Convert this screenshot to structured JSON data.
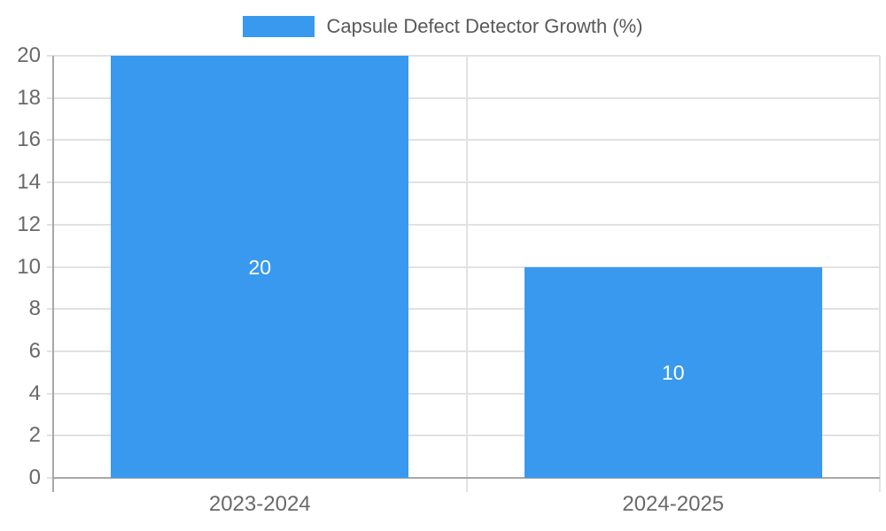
{
  "chart_data": {
    "type": "bar",
    "title": "Capsule Defect Detector Growth (%)",
    "categories": [
      "2023-2024",
      "2024-2025"
    ],
    "series": [
      {
        "name": "Capsule Defect Detector Growth (%)",
        "values": [
          20,
          10
        ],
        "color": "#3999ee"
      }
    ],
    "data_labels": [
      "20",
      "10"
    ],
    "xlabel": "",
    "ylabel": "",
    "ylim": [
      0,
      20
    ],
    "ytick_step": 2,
    "yticks": [
      0,
      2,
      4,
      6,
      8,
      10,
      12,
      14,
      16,
      18,
      20
    ],
    "grid": true,
    "legend_position": "top"
  },
  "styles": {
    "bar_color": "#3999ee",
    "grid_color": "#e2e2e2",
    "axis_color": "#a8a8a8",
    "tick_label_color": "#696969",
    "legend_text_color": "#595959",
    "data_label_color": "#ffffff",
    "background_color": "#ffffff"
  }
}
